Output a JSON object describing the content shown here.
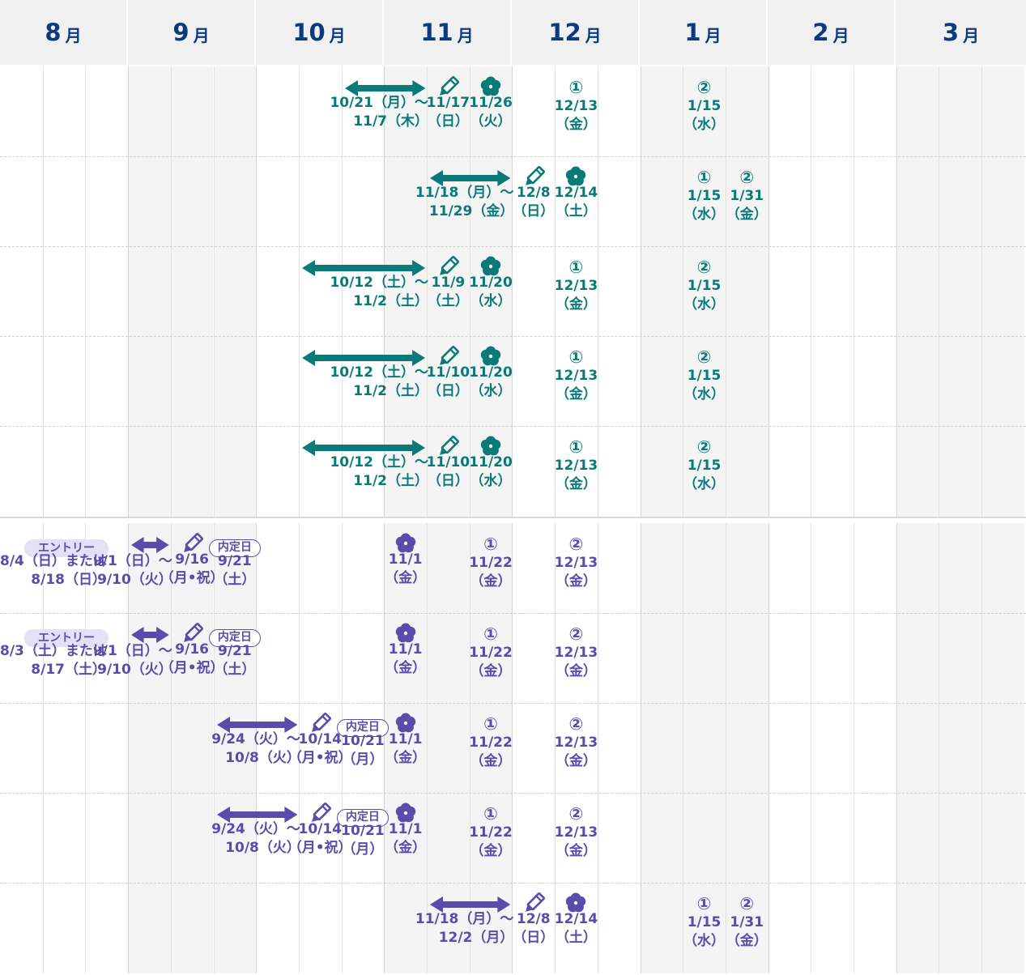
{
  "months": [
    {
      "num": "8",
      "unit": "月"
    },
    {
      "num": "9",
      "unit": "月"
    },
    {
      "num": "10",
      "unit": "月"
    },
    {
      "num": "11",
      "unit": "月"
    },
    {
      "num": "12",
      "unit": "月"
    },
    {
      "num": "1",
      "unit": "月"
    },
    {
      "num": "2",
      "unit": "月"
    },
    {
      "num": "3",
      "unit": "月"
    }
  ],
  "colors": {
    "teal": "#0a7a79",
    "purple": "#5a4cab",
    "header_text": "#0b3a7e"
  },
  "teal_rows": [
    {
      "range": {
        "line1": "10/21（月）〜",
        "line2": "11/7（木）"
      },
      "pencil": {
        "line1": "11/17",
        "line2": "（日）"
      },
      "flower": {
        "line1": "11/26",
        "line2": "（火）"
      },
      "marks": [
        {
          "sym": "①",
          "line1": "12/13",
          "line2": "（金）"
        },
        {
          "sym": "②",
          "line1": "1/15",
          "line2": "（水）"
        }
      ]
    },
    {
      "range": {
        "line1": "11/18（月）〜",
        "line2": "11/29（金）"
      },
      "pencil": {
        "line1": "12/8",
        "line2": "（日）"
      },
      "flower": {
        "line1": "12/14",
        "line2": "（土）"
      },
      "marks": [
        {
          "sym": "①",
          "line1": "1/15",
          "line2": "（水）"
        },
        {
          "sym": "②",
          "line1": "1/31",
          "line2": "（金）"
        }
      ]
    },
    {
      "range": {
        "line1": "10/12（土）〜",
        "line2": "11/2（土）"
      },
      "pencil": {
        "line1": "11/9",
        "line2": "（土）"
      },
      "flower": {
        "line1": "11/20",
        "line2": "（水）"
      },
      "marks": [
        {
          "sym": "①",
          "line1": "12/13",
          "line2": "（金）"
        },
        {
          "sym": "②",
          "line1": "1/15",
          "line2": "（水）"
        }
      ]
    },
    {
      "range": {
        "line1": "10/12（土）〜",
        "line2": "11/2（土）"
      },
      "pencil": {
        "line1": "11/10",
        "line2": "（日）"
      },
      "flower": {
        "line1": "11/20",
        "line2": "（水）"
      },
      "marks": [
        {
          "sym": "①",
          "line1": "12/13",
          "line2": "（金）"
        },
        {
          "sym": "②",
          "line1": "1/15",
          "line2": "（水）"
        }
      ]
    },
    {
      "range": {
        "line1": "10/12（土）〜",
        "line2": "11/2（土）"
      },
      "pencil": {
        "line1": "11/10",
        "line2": "（日）"
      },
      "flower": {
        "line1": "11/20",
        "line2": "（水）"
      },
      "marks": [
        {
          "sym": "①",
          "line1": "12/13",
          "line2": "（金）"
        },
        {
          "sym": "②",
          "line1": "1/15",
          "line2": "（水）"
        }
      ]
    }
  ],
  "purple_rows": [
    {
      "entry": {
        "label": "エントリー",
        "line1": "8/4（日）または",
        "line2": "8/18（日）"
      },
      "range": {
        "line1": "9/1（日）〜",
        "line2": "9/10（火）"
      },
      "pencil": {
        "line1": "9/16",
        "line2": "（月•祝）"
      },
      "naitei": {
        "label": "内定日",
        "line1": "9/21",
        "line2": "（土）"
      },
      "flower": {
        "line1": "11/1",
        "line2": "（金）"
      },
      "marks": [
        {
          "sym": "①",
          "line1": "11/22",
          "line2": "（金）"
        },
        {
          "sym": "②",
          "line1": "12/13",
          "line2": "（金）"
        }
      ]
    },
    {
      "entry": {
        "label": "エントリー",
        "line1": "8/3（土）または",
        "line2": "8/17（土）"
      },
      "range": {
        "line1": "9/1（日）〜",
        "line2": "9/10（火）"
      },
      "pencil": {
        "line1": "9/16",
        "line2": "（月•祝）"
      },
      "naitei": {
        "label": "内定日",
        "line1": "9/21",
        "line2": "（土）"
      },
      "flower": {
        "line1": "11/1",
        "line2": "（金）"
      },
      "marks": [
        {
          "sym": "①",
          "line1": "11/22",
          "line2": "（金）"
        },
        {
          "sym": "②",
          "line1": "12/13",
          "line2": "（金）"
        }
      ]
    },
    {
      "range": {
        "line1": "9/24（火）〜",
        "line2": "10/8（火）"
      },
      "pencil": {
        "line1": "10/14",
        "line2": "（月•祝）"
      },
      "naitei": {
        "label": "内定日",
        "line1": "10/21",
        "line2": "（月）"
      },
      "flower": {
        "line1": "11/1",
        "line2": "（金）"
      },
      "marks": [
        {
          "sym": "①",
          "line1": "11/22",
          "line2": "（金）"
        },
        {
          "sym": "②",
          "line1": "12/13",
          "line2": "（金）"
        }
      ]
    },
    {
      "range": {
        "line1": "9/24（火）〜",
        "line2": "10/8（火）"
      },
      "pencil": {
        "line1": "10/14",
        "line2": "（月•祝）"
      },
      "naitei": {
        "label": "内定日",
        "line1": "10/21",
        "line2": "（月）"
      },
      "flower": {
        "line1": "11/1",
        "line2": "（金）"
      },
      "marks": [
        {
          "sym": "①",
          "line1": "11/22",
          "line2": "（金）"
        },
        {
          "sym": "②",
          "line1": "12/13",
          "line2": "（金）"
        }
      ]
    },
    {
      "range": {
        "line1": "11/18（月）〜",
        "line2": "12/2（月）"
      },
      "pencil": {
        "line1": "12/8",
        "line2": "（日）"
      },
      "flower": {
        "line1": "12/14",
        "line2": "（土）"
      },
      "marks": [
        {
          "sym": "①",
          "line1": "1/15",
          "line2": "（水）"
        },
        {
          "sym": "②",
          "line1": "1/31",
          "line2": "（金）"
        }
      ]
    }
  ]
}
